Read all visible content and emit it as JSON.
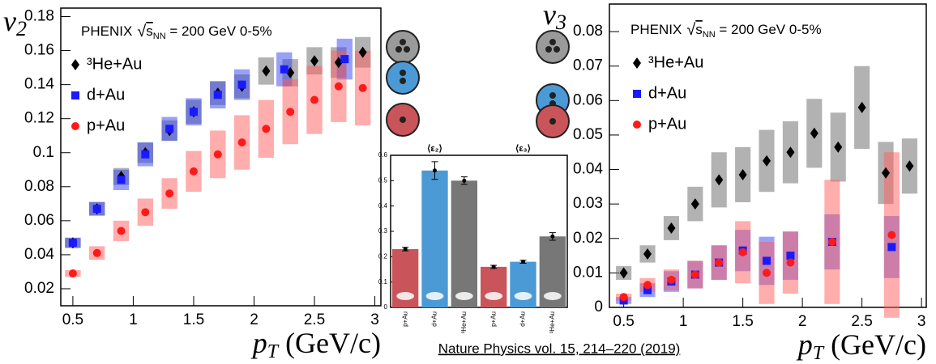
{
  "chart_data": [
    {
      "type": "scatter",
      "ylabel": "v",
      "ylabel_sub": "2",
      "xlabel": "p",
      "xlabel_sub": "T",
      "xlabel_unit": " (GeV/c)",
      "header": {
        "experiment": "PHENIX",
        "root": "√",
        "s": "s",
        "s_sub": "NN",
        "rest": " = 200 GeV 0-5%"
      },
      "xlim": [
        0.4,
        3.05
      ],
      "ylim": [
        0.01,
        0.185
      ],
      "xticks": [
        0.5,
        1,
        1.5,
        2,
        2.5,
        3
      ],
      "yticks": [
        0.02,
        0.04,
        0.06,
        0.08,
        0.1,
        0.12,
        0.14,
        0.16,
        0.18
      ],
      "series": [
        {
          "name": "³He+Au",
          "marker": "diamond",
          "color": "#000000",
          "box_color": "#666666",
          "x": [
            0.5,
            0.7,
            0.9,
            1.1,
            1.3,
            1.5,
            1.7,
            1.9,
            2.1,
            2.3,
            2.5,
            2.7,
            2.9
          ],
          "values": [
            0.047,
            0.067,
            0.086,
            0.1,
            0.113,
            0.124,
            0.135,
            0.139,
            0.148,
            0.147,
            0.154,
            0.153,
            0.159
          ],
          "sys": [
            0.003,
            0.004,
            0.005,
            0.006,
            0.006,
            0.007,
            0.007,
            0.007,
            0.008,
            0.008,
            0.008,
            0.009,
            0.009
          ]
        },
        {
          "name": "d+Au",
          "marker": "square",
          "color": "#1a1aff",
          "box_color": "#3344ee",
          "x": [
            0.5,
            0.7,
            0.9,
            1.1,
            1.3,
            1.5,
            1.7,
            1.9,
            2.25,
            2.75
          ],
          "values": [
            0.047,
            0.067,
            0.084,
            0.099,
            0.114,
            0.124,
            0.134,
            0.14,
            0.149,
            0.155
          ],
          "sys": [
            0.003,
            0.004,
            0.006,
            0.007,
            0.007,
            0.008,
            0.008,
            0.009,
            0.01,
            0.012
          ]
        },
        {
          "name": "p+Au",
          "marker": "circle",
          "color": "#ff1a1a",
          "box_color": "#ff5c5c",
          "x": [
            0.5,
            0.7,
            0.9,
            1.1,
            1.3,
            1.5,
            1.7,
            1.9,
            2.1,
            2.3,
            2.5,
            2.7,
            2.9
          ],
          "values": [
            0.029,
            0.041,
            0.054,
            0.065,
            0.076,
            0.089,
            0.099,
            0.106,
            0.114,
            0.124,
            0.131,
            0.139,
            0.138
          ],
          "sys": [
            0.002,
            0.004,
            0.006,
            0.008,
            0.009,
            0.012,
            0.014,
            0.016,
            0.017,
            0.019,
            0.02,
            0.021,
            0.022
          ]
        }
      ]
    },
    {
      "type": "bar",
      "ylim": [
        0,
        0.6
      ],
      "yticks": [
        0,
        0.1,
        0.2,
        0.3,
        0.4,
        0.5,
        0.6
      ],
      "categories": [
        "p+Au",
        "d+Au",
        "³He+Au"
      ],
      "colors": [
        "#c9555a",
        "#4b9ad6",
        "#777777"
      ],
      "series": [
        {
          "name": "⟨ε₂⟩",
          "values": [
            0.23,
            0.54,
            0.5
          ],
          "errors": [
            0.007,
            0.035,
            0.015
          ]
        },
        {
          "name": "⟨ε₃⟩",
          "values": [
            0.16,
            0.18,
            0.28
          ],
          "errors": [
            0.006,
            0.006,
            0.015
          ]
        }
      ]
    },
    {
      "type": "scatter",
      "ylabel": "v",
      "ylabel_sub": "3",
      "xlabel": "p",
      "xlabel_sub": "T",
      "xlabel_unit": " (GeV/c)",
      "header": {
        "experiment": "PHENIX",
        "root": "√",
        "s": "s",
        "s_sub": "NN",
        "rest": " = 200 GeV 0-5%"
      },
      "xlim": [
        0.38,
        3.04
      ],
      "ylim": [
        0,
        0.088
      ],
      "xticks": [
        0.5,
        1,
        1.5,
        2,
        2.5,
        3
      ],
      "yticks": [
        0,
        0.01,
        0.02,
        0.03,
        0.04,
        0.05,
        0.06,
        0.07,
        0.08
      ],
      "series": [
        {
          "name": "³He+Au",
          "marker": "diamond",
          "color": "#000000",
          "box_color": "#666666",
          "x": [
            0.5,
            0.7,
            0.9,
            1.1,
            1.3,
            1.5,
            1.7,
            1.9,
            2.1,
            2.3,
            2.5,
            2.7,
            2.9
          ],
          "values": [
            0.01,
            0.0155,
            0.023,
            0.03,
            0.037,
            0.0385,
            0.0425,
            0.045,
            0.0505,
            0.0465,
            0.058,
            0.039,
            0.041
          ],
          "sys": [
            0.002,
            0.0025,
            0.0035,
            0.005,
            0.008,
            0.008,
            0.009,
            0.009,
            0.01,
            0.01,
            0.012,
            0.009,
            0.008
          ]
        },
        {
          "name": "d+Au",
          "marker": "square",
          "color": "#1a1aff",
          "box_color": "#3344ee",
          "x": [
            0.5,
            0.7,
            0.9,
            1.1,
            1.3,
            1.5,
            1.7,
            1.9,
            2.25,
            2.75
          ],
          "values": [
            0.002,
            0.005,
            0.0075,
            0.0095,
            0.013,
            0.0165,
            0.0135,
            0.015,
            0.019,
            0.0175
          ],
          "sys": [
            0.001,
            0.002,
            0.003,
            0.004,
            0.005,
            0.006,
            0.007,
            0.007,
            0.008,
            0.009
          ]
        },
        {
          "name": "p+Au",
          "marker": "circle",
          "color": "#ff1a1a",
          "box_color": "#ff5c5c",
          "x": [
            0.5,
            0.7,
            0.9,
            1.1,
            1.3,
            1.5,
            1.7,
            1.9,
            2.25,
            2.75
          ],
          "values": [
            0.003,
            0.0065,
            0.008,
            0.0095,
            0.013,
            0.016,
            0.01,
            0.013,
            0.019,
            0.021
          ],
          "sys": [
            0.001,
            0.002,
            0.003,
            0.004,
            0.005,
            0.009,
            0.009,
            0.009,
            0.018,
            0.024
          ]
        }
      ]
    }
  ],
  "citation": "Nature Physics vol. 15,  214–220 (2019)"
}
